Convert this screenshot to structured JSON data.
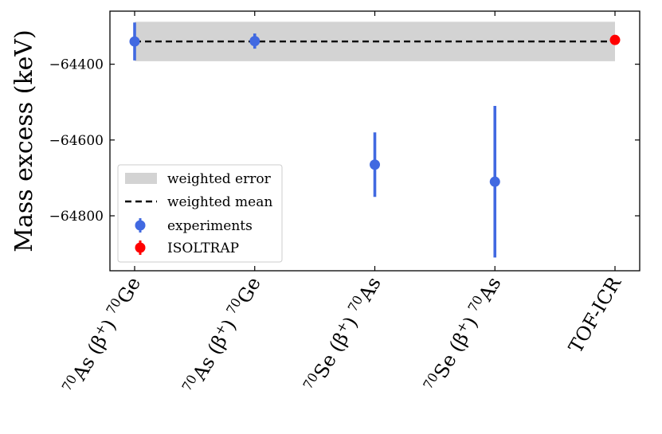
{
  "chart_data": {
    "type": "scatter",
    "title": "",
    "xlabel": "",
    "ylabel": "Mass excess (keV)",
    "categories": [
      {
        "base": "As (β",
        "sup1": "70",
        "sup2": "+",
        "mid": ") ",
        "sup3": "70",
        "end": "Ge"
      },
      {
        "base": "As (β",
        "sup1": "70",
        "sup2": "+",
        "mid": ") ",
        "sup3": "70",
        "end": "Ge"
      },
      {
        "base": "Se (β",
        "sup1": "70",
        "sup2": "+",
        "mid": ") ",
        "sup3": "70",
        "end": "As"
      },
      {
        "base": "Se (β",
        "sup1": "70",
        "sup2": "+",
        "mid": ") ",
        "sup3": "70",
        "end": "As"
      },
      {
        "base": "TOF-ICR",
        "sup1": "",
        "sup2": "",
        "mid": "",
        "sup3": "",
        "end": ""
      }
    ],
    "ylim": [
      -64945,
      -64260
    ],
    "yticks": [
      -64400,
      -64600,
      -64800
    ],
    "ytick_labels": [
      "−64400",
      "−64600",
      "−64800"
    ],
    "weighted_mean": -64340,
    "weighted_error_band": [
      -64392,
      -64288
    ],
    "series": [
      {
        "name": "experiments",
        "color": "#4169e1",
        "points": [
          {
            "x": 0,
            "y": -64340,
            "err": 50
          },
          {
            "x": 1,
            "y": -64339,
            "err": 20
          },
          {
            "x": 2,
            "y": -64665,
            "err": 85
          },
          {
            "x": 3,
            "y": -64710,
            "err": 200
          }
        ]
      },
      {
        "name": "ISOLTRAP",
        "color": "#ff0000",
        "points": [
          {
            "x": 4,
            "y": -64336,
            "err": 3
          }
        ]
      }
    ],
    "legend": {
      "position": "lower-left",
      "entries": [
        "weighted error",
        "weighted mean",
        "experiments",
        "ISOLTRAP"
      ]
    },
    "grid": false
  }
}
